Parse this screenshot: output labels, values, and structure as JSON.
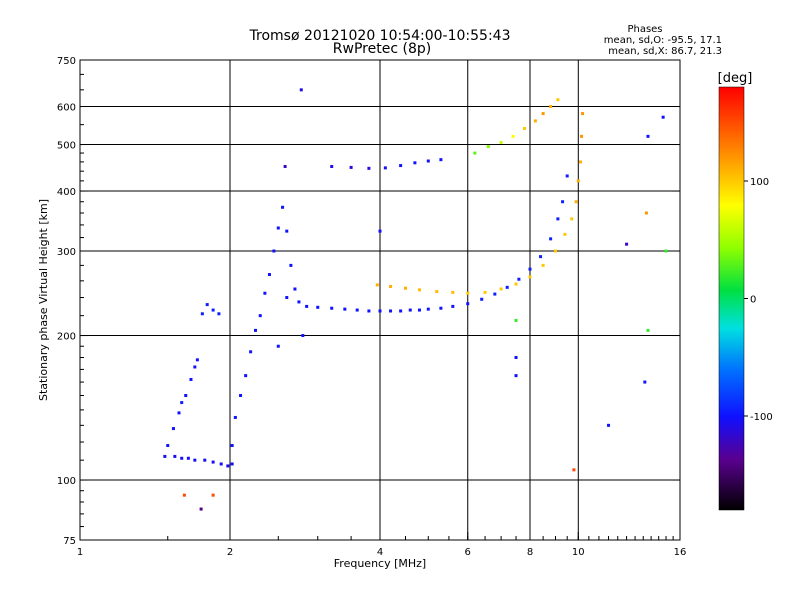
{
  "chart_data": {
    "type": "scatter",
    "title": "Tromsø 20121020 10:54:00-10:55:43",
    "subtitle": "RwPretec (8p)",
    "xlabel": "Frequency [MHz]",
    "ylabel": "Stationary phase Virtual Height [km]",
    "x_scale": "log",
    "y_scale": "log",
    "xlim": [
      1,
      16
    ],
    "ylim": [
      75,
      750
    ],
    "x_ticks": [
      1,
      2,
      4,
      6,
      8,
      10,
      16
    ],
    "x_tick_labels": [
      "1",
      "2",
      "4",
      "6",
      "8",
      "10",
      "16"
    ],
    "y_ticks": [
      75,
      100,
      200,
      300,
      400,
      500,
      600,
      750
    ],
    "y_tick_labels": [
      "75",
      "100",
      "200",
      "300",
      "400",
      "500",
      "600",
      "750"
    ],
    "x_grid": [
      2,
      4,
      6,
      8,
      10
    ],
    "y_grid": [
      100,
      200,
      300,
      400,
      500,
      600
    ],
    "grid": true,
    "stats": {
      "heading": "Phases",
      "line1": "mean, sd,O: -95.5, 17.1",
      "line2": "mean, sd,X:  86.7, 21.3"
    },
    "colorbar": {
      "label": "[deg]",
      "range": [
        -180,
        180
      ],
      "ticks": [
        100,
        0,
        -100
      ],
      "tick_labels": [
        "100",
        "0",
        "-100"
      ]
    },
    "series": [
      {
        "name": "",
        "note": "phase (deg) is the per-point color value",
        "points": [
          [
            1.48,
            112,
            -105
          ],
          [
            1.55,
            112,
            -105
          ],
          [
            1.6,
            111,
            -105
          ],
          [
            1.65,
            111,
            -105
          ],
          [
            1.7,
            110,
            -105
          ],
          [
            1.78,
            110,
            -105
          ],
          [
            1.85,
            109,
            -105
          ],
          [
            1.92,
            108,
            -105
          ],
          [
            1.98,
            107,
            -105
          ],
          [
            2.02,
            108,
            -105
          ],
          [
            1.5,
            118,
            -100
          ],
          [
            1.54,
            128,
            -100
          ],
          [
            1.58,
            138,
            -100
          ],
          [
            1.63,
            150,
            -100
          ],
          [
            1.67,
            162,
            -100
          ],
          [
            1.7,
            172,
            -100
          ],
          [
            1.72,
            178,
            -100
          ],
          [
            1.6,
            145,
            -95
          ],
          [
            1.76,
            222,
            -95
          ],
          [
            1.8,
            232,
            -95
          ],
          [
            1.85,
            226,
            -95
          ],
          [
            1.9,
            222,
            -95
          ],
          [
            2.02,
            118,
            -100
          ],
          [
            2.05,
            135,
            -100
          ],
          [
            2.1,
            150,
            -100
          ],
          [
            2.15,
            165,
            -100
          ],
          [
            2.2,
            185,
            -100
          ],
          [
            2.25,
            205,
            -100
          ],
          [
            2.3,
            220,
            -100
          ],
          [
            2.35,
            245,
            -100
          ],
          [
            2.4,
            268,
            -100
          ],
          [
            2.45,
            300,
            -100
          ],
          [
            2.5,
            335,
            -100
          ],
          [
            2.55,
            370,
            -100
          ],
          [
            2.6,
            330,
            -100
          ],
          [
            2.65,
            280,
            -100
          ],
          [
            2.7,
            250,
            -100
          ],
          [
            2.75,
            235,
            -100
          ],
          [
            2.8,
            200,
            -100
          ],
          [
            2.5,
            190,
            -100
          ],
          [
            2.6,
            240,
            -100
          ],
          [
            2.85,
            230,
            -100
          ],
          [
            3.0,
            229,
            -100
          ],
          [
            3.2,
            228,
            -100
          ],
          [
            3.4,
            227,
            -100
          ],
          [
            3.6,
            226,
            -100
          ],
          [
            3.8,
            225,
            -100
          ],
          [
            4.0,
            225,
            -100
          ],
          [
            4.2,
            225,
            -100
          ],
          [
            4.4,
            225,
            -100
          ],
          [
            4.6,
            226,
            -100
          ],
          [
            4.8,
            226,
            -100
          ],
          [
            5.0,
            227,
            -100
          ],
          [
            5.3,
            228,
            -100
          ],
          [
            5.6,
            230,
            -100
          ],
          [
            6.0,
            233,
            -100
          ],
          [
            6.4,
            238,
            -95
          ],
          [
            6.8,
            244,
            -95
          ],
          [
            7.2,
            252,
            -95
          ],
          [
            7.6,
            262,
            -95
          ],
          [
            8.0,
            275,
            -95
          ],
          [
            8.4,
            292,
            -95
          ],
          [
            8.8,
            318,
            -95
          ],
          [
            9.1,
            350,
            -95
          ],
          [
            9.3,
            380,
            -95
          ],
          [
            9.5,
            430,
            -95
          ],
          [
            3.2,
            450,
            -110
          ],
          [
            3.5,
            448,
            -110
          ],
          [
            3.8,
            446,
            -110
          ],
          [
            4.1,
            447,
            -105
          ],
          [
            4.4,
            452,
            -100
          ],
          [
            4.7,
            458,
            -100
          ],
          [
            5.0,
            462,
            -100
          ],
          [
            5.3,
            465,
            -100
          ],
          [
            3.95,
            255,
            110
          ],
          [
            4.2,
            253,
            110
          ],
          [
            4.5,
            251,
            110
          ],
          [
            4.8,
            249,
            105
          ],
          [
            5.2,
            247,
            105
          ],
          [
            5.6,
            246,
            105
          ],
          [
            6.0,
            245,
            100
          ],
          [
            6.5,
            246,
            100
          ],
          [
            7.0,
            250,
            100
          ],
          [
            7.5,
            256,
            100
          ],
          [
            8.0,
            265,
            100
          ],
          [
            8.5,
            280,
            100
          ],
          [
            9.0,
            300,
            100
          ],
          [
            9.4,
            325,
            100
          ],
          [
            9.7,
            350,
            100
          ],
          [
            9.9,
            380,
            110
          ],
          [
            10.0,
            420,
            110
          ],
          [
            10.1,
            460,
            110
          ],
          [
            10.15,
            520,
            120
          ],
          [
            10.2,
            580,
            120
          ],
          [
            6.2,
            480,
            30
          ],
          [
            6.6,
            495,
            40
          ],
          [
            7.0,
            505,
            60
          ],
          [
            7.4,
            520,
            80
          ],
          [
            7.8,
            540,
            100
          ],
          [
            8.2,
            560,
            110
          ],
          [
            8.5,
            580,
            120
          ],
          [
            8.8,
            600,
            110
          ],
          [
            9.1,
            620,
            100
          ],
          [
            2.78,
            650,
            -110
          ],
          [
            2.58,
            450,
            -120
          ],
          [
            4.0,
            330,
            -100
          ],
          [
            7.5,
            215,
            20
          ],
          [
            7.5,
            180,
            -100
          ],
          [
            7.5,
            165,
            -100
          ],
          [
            9.8,
            105,
            150
          ],
          [
            11.5,
            130,
            -100
          ],
          [
            12.5,
            310,
            -120
          ],
          [
            13.6,
            160,
            -100
          ],
          [
            13.8,
            520,
            -100
          ],
          [
            14.8,
            570,
            -100
          ],
          [
            15.0,
            300,
            20
          ],
          [
            1.62,
            93,
            150
          ],
          [
            1.75,
            87,
            -140
          ],
          [
            1.85,
            93,
            150
          ],
          [
            13.7,
            360,
            120
          ],
          [
            13.8,
            205,
            20
          ]
        ]
      }
    ]
  }
}
